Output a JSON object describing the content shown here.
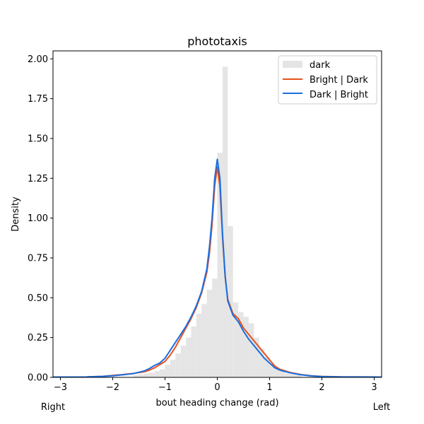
{
  "chart_data": {
    "type": "histogram+kde",
    "title": "phototaxis",
    "xlabel": "bout heading change (rad)",
    "ylabel": "Density",
    "xlim": [
      -3.14159,
      3.14159
    ],
    "ylim": [
      0,
      2.05
    ],
    "xticks": [
      -3,
      -2,
      -1,
      0,
      1,
      2,
      3
    ],
    "yticks": [
      0.0,
      0.25,
      0.5,
      0.75,
      1.0,
      1.25,
      1.5,
      1.75,
      2.0
    ],
    "ytick_labels": [
      "0.00",
      "0.25",
      "0.50",
      "0.75",
      "1.00",
      "1.25",
      "1.50",
      "1.75",
      "2.00"
    ],
    "grid": false,
    "legend_position": "top-right",
    "side_labels": {
      "left": "Right",
      "right": "Left"
    },
    "histogram": {
      "name": "dark",
      "color": "#e5e5e5",
      "bin_width": 0.1,
      "bins": [
        [
          -1.6,
          0.015
        ],
        [
          -1.5,
          0.02
        ],
        [
          -1.4,
          0.025
        ],
        [
          -1.3,
          0.03
        ],
        [
          -1.2,
          0.04
        ],
        [
          -1.1,
          0.05
        ],
        [
          -1.0,
          0.08
        ],
        [
          -0.9,
          0.11
        ],
        [
          -0.8,
          0.15
        ],
        [
          -0.7,
          0.2
        ],
        [
          -0.6,
          0.25
        ],
        [
          -0.5,
          0.32
        ],
        [
          -0.4,
          0.4
        ],
        [
          -0.3,
          0.46
        ],
        [
          -0.2,
          0.55
        ],
        [
          -0.1,
          0.62
        ],
        [
          0.0,
          1.41
        ],
        [
          0.1,
          1.95
        ],
        [
          0.2,
          0.95
        ],
        [
          0.3,
          0.47
        ],
        [
          0.4,
          0.41
        ],
        [
          0.5,
          0.38
        ],
        [
          0.6,
          0.34
        ],
        [
          0.7,
          0.25
        ],
        [
          0.8,
          0.18
        ],
        [
          0.9,
          0.13
        ],
        [
          1.0,
          0.09
        ],
        [
          1.1,
          0.06
        ],
        [
          1.2,
          0.04
        ],
        [
          1.3,
          0.025
        ],
        [
          1.4,
          0.02
        ],
        [
          1.5,
          0.015
        ]
      ]
    },
    "series": [
      {
        "name": "Bright | Dark",
        "color": "#e8501c",
        "x": [
          -3.14,
          -2.5,
          -2.2,
          -2.0,
          -1.8,
          -1.6,
          -1.4,
          -1.3,
          -1.2,
          -1.1,
          -1.0,
          -0.9,
          -0.8,
          -0.7,
          -0.6,
          -0.5,
          -0.4,
          -0.3,
          -0.2,
          -0.15,
          -0.1,
          -0.05,
          0.0,
          0.05,
          0.1,
          0.15,
          0.2,
          0.3,
          0.4,
          0.5,
          0.6,
          0.7,
          0.8,
          0.9,
          1.0,
          1.1,
          1.2,
          1.4,
          1.6,
          1.8,
          2.0,
          2.4,
          3.14
        ],
        "y": [
          0.002,
          0.003,
          0.006,
          0.012,
          0.018,
          0.025,
          0.035,
          0.045,
          0.06,
          0.08,
          0.1,
          0.14,
          0.19,
          0.25,
          0.31,
          0.37,
          0.44,
          0.53,
          0.66,
          0.78,
          0.96,
          1.2,
          1.32,
          1.2,
          0.88,
          0.63,
          0.49,
          0.4,
          0.37,
          0.31,
          0.27,
          0.23,
          0.19,
          0.15,
          0.11,
          0.07,
          0.05,
          0.03,
          0.018,
          0.01,
          0.006,
          0.003,
          0.002
        ]
      },
      {
        "name": "Dark | Bright",
        "color": "#1a6fe0",
        "x": [
          -3.14,
          -2.5,
          -2.2,
          -2.0,
          -1.8,
          -1.6,
          -1.4,
          -1.3,
          -1.2,
          -1.1,
          -1.0,
          -0.9,
          -0.8,
          -0.7,
          -0.6,
          -0.5,
          -0.4,
          -0.3,
          -0.2,
          -0.15,
          -0.1,
          -0.05,
          0.0,
          0.05,
          0.1,
          0.15,
          0.2,
          0.3,
          0.4,
          0.5,
          0.6,
          0.7,
          0.8,
          0.9,
          1.0,
          1.1,
          1.2,
          1.4,
          1.6,
          1.8,
          2.0,
          2.4,
          3.14
        ],
        "y": [
          0.002,
          0.003,
          0.006,
          0.01,
          0.016,
          0.024,
          0.04,
          0.055,
          0.075,
          0.09,
          0.12,
          0.17,
          0.22,
          0.27,
          0.32,
          0.38,
          0.45,
          0.54,
          0.68,
          0.82,
          1.0,
          1.25,
          1.37,
          1.25,
          0.9,
          0.64,
          0.48,
          0.39,
          0.35,
          0.29,
          0.24,
          0.2,
          0.16,
          0.12,
          0.09,
          0.06,
          0.045,
          0.028,
          0.016,
          0.009,
          0.005,
          0.003,
          0.002
        ]
      }
    ]
  }
}
